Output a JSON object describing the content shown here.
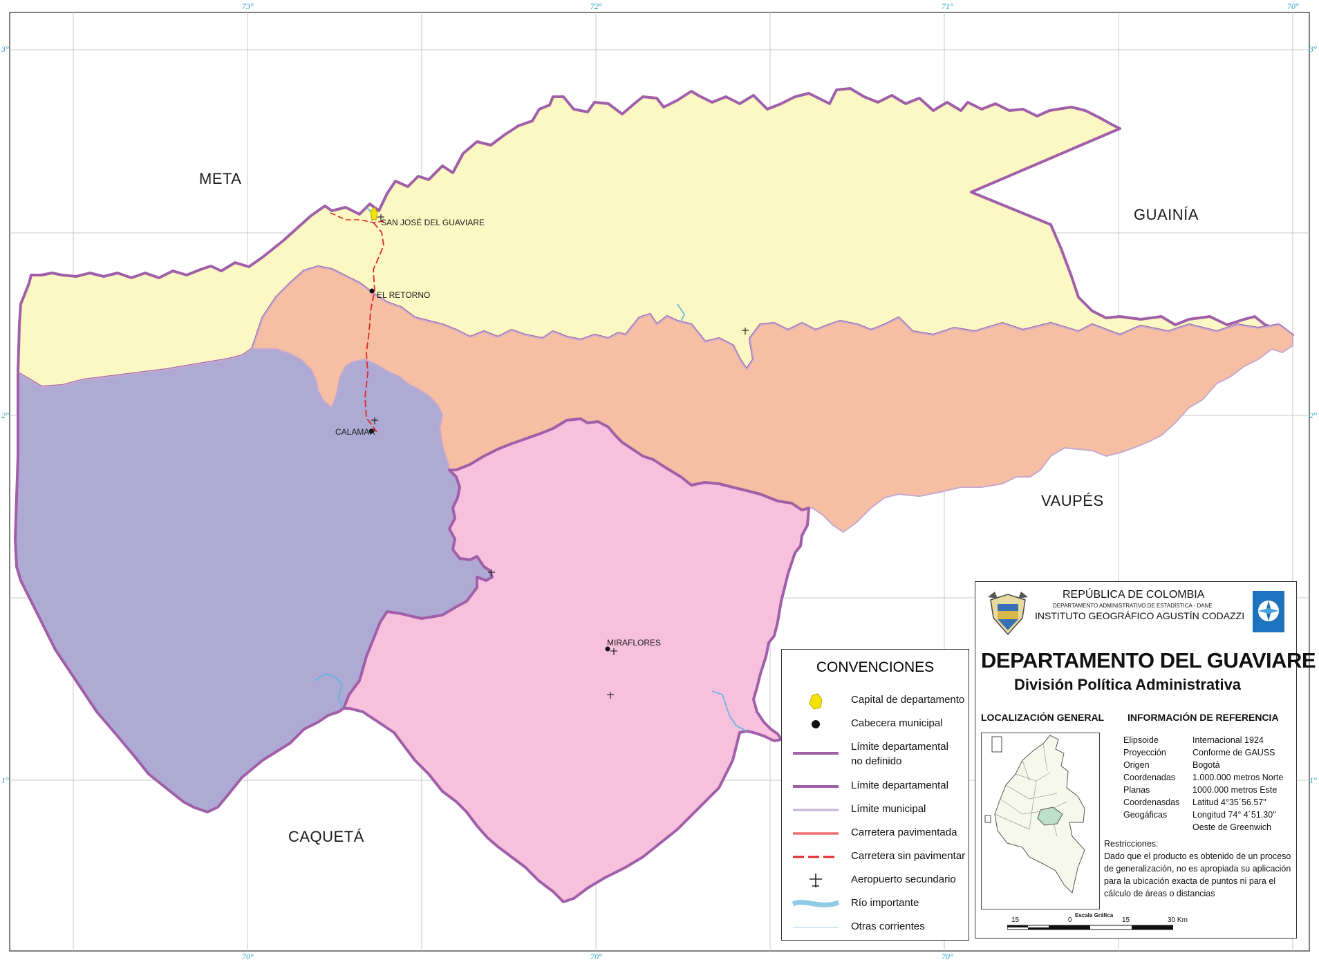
{
  "grid_labels": {
    "lon_top": [
      "73°",
      "72°",
      "71°",
      "70°"
    ],
    "lon_bottom": [
      "70°",
      "70°",
      "70°"
    ],
    "lat_left": [
      "3°",
      "2°",
      "1°"
    ],
    "lat_right": [
      "3°",
      "2°",
      "1°"
    ]
  },
  "neighbors": {
    "meta": "META",
    "guainia": "GUAINÍA",
    "vaupes": "VAUPÉS",
    "caqueta": "CAQUETÁ"
  },
  "towns": {
    "san_jose": "SAN JOSÉ DEL GUAVIARE",
    "el_retorno": "EL RETORNO",
    "calamar": "CALAMAR",
    "miraflores": "MIRAFLORES"
  },
  "colors": {
    "san_jose_municipality": "#fbf8c3",
    "el_retorno_municipality": "#f6bfa3",
    "calamar_municipality": "#aeaad3",
    "miraflores_municipality": "#f7c0dd",
    "department_border": "#a05fa8",
    "paved_road": "#e0282a",
    "river": "#59b8e6",
    "grid": "#c9c9c9"
  },
  "legend": {
    "title": "CONVENCIONES",
    "items": [
      {
        "label": "Capital de departamento",
        "symbol": "capital-icon"
      },
      {
        "label": "Cabecera municipal",
        "symbol": "town-dot-icon"
      },
      {
        "label": "Límite departamental\nno definido",
        "symbol": "undefined-boundary-line"
      },
      {
        "label": "Límite departamental",
        "symbol": "department-boundary-line"
      },
      {
        "label": "Límite municipal",
        "symbol": "municipal-boundary-line"
      },
      {
        "label": "Carretera pavimentada",
        "symbol": "paved-road-line"
      },
      {
        "label": "Carretera sin pavimentar",
        "symbol": "unpaved-road-line"
      },
      {
        "label": "Aeropuerto secundario",
        "symbol": "airport-icon"
      },
      {
        "label": "Río importante",
        "symbol": "major-river-line"
      },
      {
        "label": "Otras corrientes",
        "symbol": "minor-stream-line"
      }
    ]
  },
  "info": {
    "country": "REPÚBLICA DE COLOMBIA",
    "agency_small": "DEPARTAMENTO ADMINISTRATIVO DE ESTADÍSTICA - DANE",
    "institute": "INSTITUTO GEOGRÁFICO AGUSTÍN CODAZZI",
    "title": "DEPARTAMENTO DEL GUAVIARE",
    "subtitle": "División Política Administrativa",
    "loc_heading": "LOCALIZACIÓN GENERAL",
    "ref_heading": "INFORMACIÓN DE REFERENCIA",
    "reference": [
      {
        "k": "Elipsoide",
        "v": "Internacional 1924"
      },
      {
        "k": "Proyección",
        "v": "Conforme de GAUSS"
      },
      {
        "k": "Origen",
        "v": "Bogotá"
      },
      {
        "k": "Coordenadas",
        "v": "1.000.000 metros Norte"
      },
      {
        "k": "Planas",
        "v": "1000.000 metros Este"
      },
      {
        "k": "Coordenasdas",
        "v": "Latitud 4°35´56.57\""
      },
      {
        "k": "Geogáficas",
        "v": "Longitud 74° 4´51.30\""
      },
      {
        "k": "",
        "v": "Oeste de Greenwich"
      }
    ],
    "restr_heading": "Restricciones:",
    "restr_lines": [
      "Dado que el producto es obtenido de un proceso",
      "de generalización, no es apropiada su aplicación",
      "para la ubicación exacta de puntos ni para el",
      "cálculo de áreas o distancias"
    ],
    "scale_title": "Escala Gráfica",
    "scale_ticks": [
      "15",
      "0",
      "15",
      "30 Km"
    ]
  }
}
